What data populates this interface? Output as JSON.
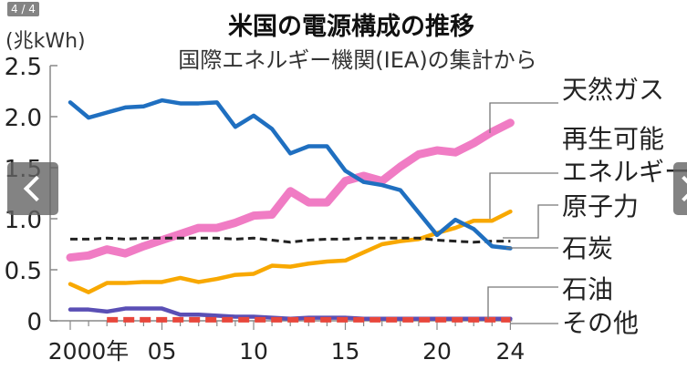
{
  "carousel": {
    "counter": "4 / 4",
    "prev_icon": "chevron-left-icon",
    "next_icon": "chevron-right-icon"
  },
  "chart_data": {
    "type": "line",
    "title": "米国の電源構成の推移",
    "subtitle": "国際エネルギー機関(IEA)の集計から",
    "ylabel": "(兆kWh)",
    "xlabel": "",
    "ylim": [
      0,
      2.5
    ],
    "xlim": [
      2000,
      2024
    ],
    "yticks": [
      "0",
      "0.5",
      "1.0",
      "1.5",
      "2.0",
      "2.5"
    ],
    "xtick_labels": [
      {
        "year": 2000,
        "label": "2000年"
      },
      {
        "year": 2005,
        "label": "05"
      },
      {
        "year": 2010,
        "label": "10"
      },
      {
        "year": 2015,
        "label": "15"
      },
      {
        "year": 2020,
        "label": "20"
      },
      {
        "year": 2024,
        "label": "24"
      }
    ],
    "grid": false,
    "legend": "right (direct labels)",
    "x": [
      2000,
      2001,
      2002,
      2003,
      2004,
      2005,
      2006,
      2007,
      2008,
      2009,
      2010,
      2011,
      2012,
      2013,
      2014,
      2015,
      2016,
      2017,
      2018,
      2019,
      2020,
      2021,
      2022,
      2023,
      2024
    ],
    "series": [
      {
        "name": "天然ガス",
        "color": "#f07cc4",
        "style": "thick",
        "values": [
          0.62,
          0.64,
          0.7,
          0.66,
          0.73,
          0.79,
          0.85,
          0.91,
          0.91,
          0.96,
          1.03,
          1.04,
          1.27,
          1.16,
          1.16,
          1.37,
          1.42,
          1.37,
          1.51,
          1.63,
          1.67,
          1.65,
          1.74,
          1.85,
          1.94
        ]
      },
      {
        "name": "再生可能エネルギー",
        "color": "#f8a800",
        "style": "solid",
        "values": [
          0.36,
          0.28,
          0.37,
          0.37,
          0.38,
          0.38,
          0.42,
          0.38,
          0.41,
          0.45,
          0.46,
          0.54,
          0.53,
          0.56,
          0.58,
          0.59,
          0.67,
          0.75,
          0.78,
          0.8,
          0.86,
          0.91,
          0.98,
          0.98,
          1.07
        ]
      },
      {
        "name": "原子力",
        "color": "#222222",
        "style": "dashed",
        "values": [
          0.8,
          0.8,
          0.81,
          0.8,
          0.81,
          0.81,
          0.81,
          0.81,
          0.81,
          0.8,
          0.81,
          0.79,
          0.77,
          0.79,
          0.8,
          0.8,
          0.81,
          0.81,
          0.81,
          0.81,
          0.79,
          0.78,
          0.77,
          0.78,
          0.78
        ]
      },
      {
        "name": "石炭",
        "color": "#1f6fc0",
        "style": "solid",
        "values": [
          2.14,
          1.99,
          2.04,
          2.09,
          2.1,
          2.16,
          2.13,
          2.13,
          2.14,
          1.9,
          2.01,
          1.88,
          1.64,
          1.71,
          1.71,
          1.47,
          1.36,
          1.33,
          1.28,
          1.06,
          0.84,
          0.99,
          0.9,
          0.73,
          0.71
        ]
      },
      {
        "name": "石油",
        "color": "#5a4fb5",
        "style": "solid",
        "values": [
          0.11,
          0.11,
          0.09,
          0.12,
          0.12,
          0.12,
          0.06,
          0.06,
          0.05,
          0.04,
          0.04,
          0.03,
          0.02,
          0.03,
          0.03,
          0.03,
          0.02,
          0.02,
          0.02,
          0.02,
          0.02,
          0.02,
          0.02,
          0.02,
          0.02
        ]
      },
      {
        "name": "その他",
        "color": "#e8473c",
        "style": "dashed",
        "values": [
          null,
          null,
          0.01,
          0.01,
          0.01,
          0.01,
          0.01,
          0.01,
          0.01,
          0.01,
          0.01,
          0.01,
          0.01,
          0.01,
          0.01,
          0.01,
          0.01,
          0.01,
          0.01,
          0.01,
          0.01,
          0.01,
          0.01,
          0.01,
          0.01
        ]
      }
    ],
    "labels": [
      {
        "text": "天然ガス",
        "series": 0
      },
      {
        "text": "再生可能",
        "text2": "エネルギー",
        "series": 1
      },
      {
        "text": "原子力",
        "series": 2
      },
      {
        "text": "石炭",
        "series": 3
      },
      {
        "text": "石油",
        "series": 4
      },
      {
        "text": "その他",
        "series": 5
      }
    ]
  }
}
